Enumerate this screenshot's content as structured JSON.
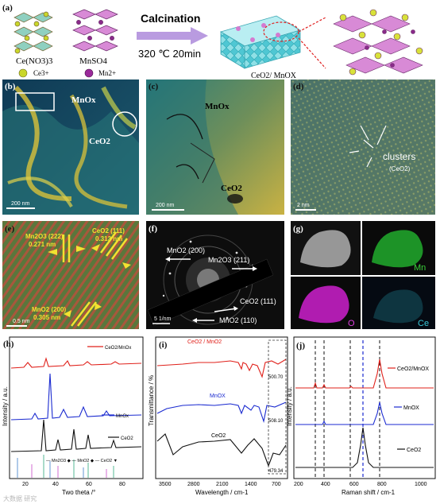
{
  "panel_a": {
    "label": "(a)",
    "precursor1": "Ce(NO3)3",
    "precursor2": "MnSO4",
    "ion1": "Ce3+",
    "ion2": "Mn2+",
    "process": "Calcination",
    "conditions": "320 ℃  20min",
    "product": "CeO2/ MnOX"
  },
  "panel_b": {
    "label": "(b)",
    "mnox": "MnOx",
    "ceo2": "CeO2",
    "scale": "200 nm"
  },
  "panel_c": {
    "label": "(c)",
    "mnox": "MnOx",
    "ceo2": "CeO2",
    "scale": "200 nm"
  },
  "panel_d": {
    "label": "(d)",
    "clusters": "clusters",
    "clusters_sub": "(CeO2)",
    "scale": "2 nm"
  },
  "panel_e": {
    "label": "(e)",
    "mn222": "Mn2O3 (222)",
    "mn222_d": "0.271 nm",
    "ce111": "CeO2 (111)",
    "ce111_d": "0.313 nm",
    "mno200": "MnO2 (200)",
    "mno200_d": "0.305 nm",
    "scale": "0.5 nm"
  },
  "panel_f": {
    "label": "(f)",
    "r1": "MnO2 (200)",
    "r2": "Mn2O3 (211)",
    "r3": "CeO2 (111)",
    "r4": "MnO2 (110)",
    "scale": "5 1/nm"
  },
  "panel_g": {
    "label": "(g)",
    "mn": "Mn",
    "o": "O",
    "ce": "Ce"
  },
  "panel_h": {
    "label": "(h)",
    "s1": "CeO2/MnOx",
    "s2": "MnOx",
    "s3": "CeO2",
    "legend": "— Mn2O3 ◆  — MnO2 ◆  — CeO2 ▼",
    "xlabel": "Two theta /°",
    "ylabel": "Intensity / a.u.",
    "xticks": [
      "20",
      "40",
      "60",
      "80"
    ]
  },
  "panel_i": {
    "label": "(i)",
    "s1": "CeO2 / MnO2",
    "s2": "MnOX",
    "s3": "CeO2",
    "peak1": "500.70",
    "peak2": "508.10",
    "peak3": "479.34",
    "xlabel": "Wavelength / cm-1",
    "ylabel": "Transmittance / %",
    "xticks": [
      "3500",
      "2800",
      "2100",
      "1400",
      "700"
    ]
  },
  "panel_j": {
    "label": "(j)",
    "s1": "CeO2/MnOX",
    "s2": "MnOX",
    "s3": "CeO2",
    "xlabel": "Raman shift / cm-1",
    "ylabel": "Intensity / a.u.",
    "xticks": [
      "200",
      "400",
      "600",
      "800",
      "1000"
    ]
  },
  "watermark": "大数据 研究"
}
